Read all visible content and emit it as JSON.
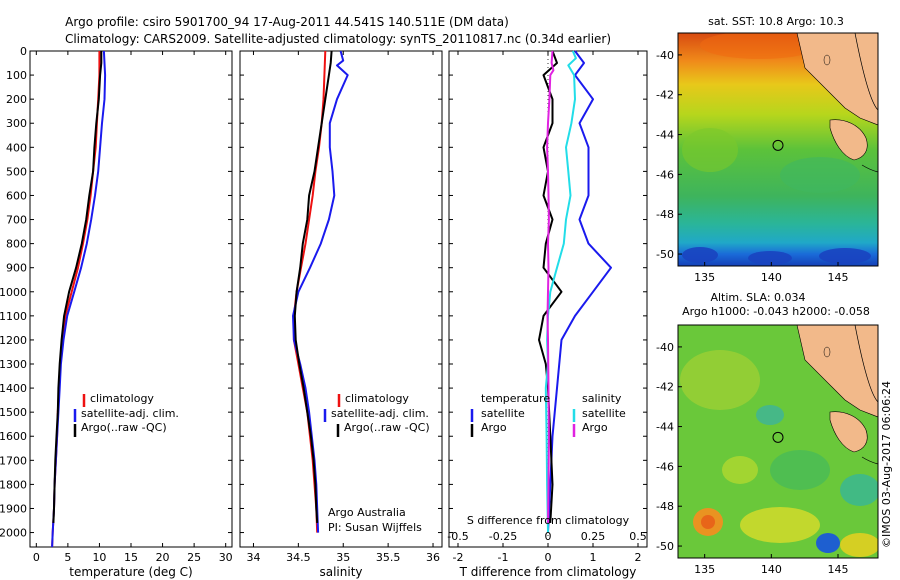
{
  "header": {
    "line1": "Argo profile: csiro 5901700_94 17-Aug-2011 44.541S 140.511E (DM data)",
    "line2": "Climatology: CARS2009. Satellite-adjusted climatology: synTS_20110817.nc (0.34d earlier)"
  },
  "side_label": "©IMOS 03-Aug-2017 06:06:24",
  "colors": {
    "climatology": "#ee1111",
    "satellite": "#1a1aee",
    "argo": "#000000",
    "sat_sal": "#22dde8",
    "argo_sal": "#e022e0"
  },
  "chart_data": [
    {
      "type": "line",
      "id": "temperature",
      "xlabel": "temperature (deg C)",
      "xlim": [
        -1,
        31
      ],
      "xticks": [
        0,
        5,
        10,
        15,
        20,
        25,
        30
      ],
      "ylim": [
        2060,
        0
      ],
      "yticks": [
        0,
        100,
        200,
        300,
        400,
        500,
        600,
        700,
        800,
        900,
        1000,
        1100,
        1200,
        1300,
        1400,
        1500,
        1600,
        1700,
        1800,
        1900,
        2000
      ],
      "legend": [
        "climatology",
        "satellite-adj. clim.",
        "Argo(..raw -QC)"
      ],
      "series": [
        {
          "name": "climatology",
          "color": "#ee1111",
          "points": [
            [
              10.0,
              0
            ],
            [
              10.0,
              100
            ],
            [
              9.8,
              200
            ],
            [
              9.6,
              300
            ],
            [
              9.4,
              400
            ],
            [
              9.0,
              500
            ],
            [
              8.6,
              600
            ],
            [
              8.1,
              700
            ],
            [
              7.4,
              800
            ],
            [
              6.6,
              900
            ],
            [
              5.6,
              1000
            ],
            [
              4.6,
              1100
            ],
            [
              4.1,
              1200
            ],
            [
              3.8,
              1300
            ],
            [
              3.6,
              1400
            ],
            [
              3.4,
              1500
            ],
            [
              3.3,
              1600
            ],
            [
              3.1,
              1700
            ],
            [
              2.9,
              1800
            ],
            [
              2.8,
              1900
            ],
            [
              2.6,
              2000
            ],
            [
              2.5,
              2060
            ]
          ]
        },
        {
          "name": "satellite-adj. clim.",
          "color": "#1a1aee",
          "points": [
            [
              10.7,
              0
            ],
            [
              10.9,
              100
            ],
            [
              10.8,
              200
            ],
            [
              10.4,
              300
            ],
            [
              10.1,
              400
            ],
            [
              9.8,
              500
            ],
            [
              9.3,
              600
            ],
            [
              8.7,
              700
            ],
            [
              8.0,
              800
            ],
            [
              7.1,
              900
            ],
            [
              6.0,
              1000
            ],
            [
              4.9,
              1100
            ],
            [
              4.3,
              1200
            ],
            [
              3.9,
              1300
            ],
            [
              3.7,
              1400
            ],
            [
              3.5,
              1500
            ],
            [
              3.3,
              1600
            ],
            [
              3.1,
              1700
            ],
            [
              2.9,
              1800
            ],
            [
              2.8,
              1900
            ],
            [
              2.6,
              2000
            ],
            [
              2.5,
              2060
            ]
          ]
        },
        {
          "name": "Argo(..raw -QC)",
          "color": "#000000",
          "points": [
            [
              10.3,
              0
            ],
            [
              10.3,
              50
            ],
            [
              10.1,
              100
            ],
            [
              9.9,
              200
            ],
            [
              9.5,
              300
            ],
            [
              9.2,
              400
            ],
            [
              9.0,
              500
            ],
            [
              8.4,
              600
            ],
            [
              7.9,
              700
            ],
            [
              7.2,
              800
            ],
            [
              6.3,
              900
            ],
            [
              5.2,
              1000
            ],
            [
              4.4,
              1100
            ],
            [
              4.0,
              1200
            ],
            [
              3.7,
              1300
            ],
            [
              3.5,
              1400
            ],
            [
              3.4,
              1500
            ],
            [
              3.2,
              1600
            ],
            [
              3.0,
              1700
            ],
            [
              2.9,
              1800
            ],
            [
              2.8,
              1900
            ],
            [
              2.7,
              1960
            ]
          ]
        }
      ]
    },
    {
      "type": "line",
      "id": "salinity",
      "xlabel": "salinity",
      "xlim": [
        33.85,
        36.1
      ],
      "xticks": [
        34,
        34.5,
        35,
        35.5,
        36
      ],
      "ylim": [
        2060,
        0
      ],
      "legend": [
        "climatology",
        "satellite-adj. clim.",
        "Argo(..raw -QC)"
      ],
      "annotation": [
        "Argo Australia",
        "PI: Susan Wijffels"
      ],
      "series": [
        {
          "name": "climatology",
          "color": "#ee1111",
          "points": [
            [
              34.8,
              0
            ],
            [
              34.79,
              100
            ],
            [
              34.78,
              200
            ],
            [
              34.76,
              300
            ],
            [
              34.73,
              400
            ],
            [
              34.69,
              500
            ],
            [
              34.66,
              600
            ],
            [
              34.62,
              700
            ],
            [
              34.58,
              800
            ],
            [
              34.53,
              900
            ],
            [
              34.48,
              1000
            ],
            [
              34.45,
              1100
            ],
            [
              34.45,
              1200
            ],
            [
              34.5,
              1300
            ],
            [
              34.55,
              1400
            ],
            [
              34.6,
              1500
            ],
            [
              34.63,
              1600
            ],
            [
              34.66,
              1700
            ],
            [
              34.68,
              1800
            ],
            [
              34.7,
              1900
            ],
            [
              34.71,
              2000
            ]
          ]
        },
        {
          "name": "satellite-adj. clim.",
          "color": "#1a1aee",
          "points": [
            [
              34.97,
              0
            ],
            [
              35.0,
              40
            ],
            [
              34.93,
              60
            ],
            [
              35.05,
              100
            ],
            [
              34.93,
              200
            ],
            [
              34.85,
              300
            ],
            [
              34.85,
              400
            ],
            [
              34.88,
              500
            ],
            [
              34.9,
              600
            ],
            [
              34.84,
              700
            ],
            [
              34.75,
              800
            ],
            [
              34.63,
              900
            ],
            [
              34.5,
              1000
            ],
            [
              34.44,
              1100
            ],
            [
              34.45,
              1200
            ],
            [
              34.52,
              1300
            ],
            [
              34.58,
              1400
            ],
            [
              34.62,
              1500
            ],
            [
              34.65,
              1600
            ],
            [
              34.68,
              1700
            ],
            [
              34.7,
              1800
            ],
            [
              34.71,
              1900
            ],
            [
              34.72,
              2000
            ]
          ]
        },
        {
          "name": "Argo(..raw -QC)",
          "color": "#000000",
          "points": [
            [
              34.87,
              0
            ],
            [
              34.86,
              50
            ],
            [
              34.84,
              100
            ],
            [
              34.8,
              200
            ],
            [
              34.76,
              300
            ],
            [
              34.72,
              400
            ],
            [
              34.68,
              500
            ],
            [
              34.62,
              600
            ],
            [
              34.6,
              700
            ],
            [
              34.55,
              800
            ],
            [
              34.52,
              900
            ],
            [
              34.48,
              1000
            ],
            [
              34.46,
              1100
            ],
            [
              34.47,
              1200
            ],
            [
              34.51,
              1300
            ],
            [
              34.56,
              1400
            ],
            [
              34.6,
              1500
            ],
            [
              34.64,
              1600
            ],
            [
              34.67,
              1700
            ],
            [
              34.69,
              1800
            ],
            [
              34.7,
              1900
            ],
            [
              34.71,
              1960
            ]
          ]
        }
      ]
    },
    {
      "type": "line",
      "id": "difference",
      "xlabel": "T difference from climatology",
      "xlabel_top": "S difference from climatology",
      "xlim": [
        -2.2,
        2.2
      ],
      "xticks": [
        -2,
        -1,
        0,
        1,
        2
      ],
      "xticks_top": [
        -0.5,
        -0.25,
        0,
        0.25,
        0.5
      ],
      "top_tick_labels": [
        "-0.5",
        "-0.25",
        "0",
        "0.25",
        "0.5"
      ],
      "ylim": [
        2060,
        0
      ],
      "legend": {
        "temperature": [
          "temperature",
          "satellite",
          "Argo"
        ],
        "salinity": [
          "salinity",
          "satellite",
          "Argo"
        ]
      },
      "series": [
        {
          "name": "temperature satellite",
          "color": "#1a1aee",
          "points": [
            [
              0.6,
              0
            ],
            [
              0.8,
              50
            ],
            [
              0.6,
              100
            ],
            [
              1.0,
              200
            ],
            [
              0.7,
              300
            ],
            [
              0.9,
              400
            ],
            [
              0.9,
              500
            ],
            [
              0.9,
              600
            ],
            [
              0.7,
              700
            ],
            [
              0.9,
              800
            ],
            [
              1.4,
              900
            ],
            [
              1.0,
              1000
            ],
            [
              0.6,
              1100
            ],
            [
              0.3,
              1200
            ],
            [
              0.2,
              1400
            ],
            [
              0.1,
              1600
            ],
            [
              0.05,
              1800
            ],
            [
              0,
              2000
            ]
          ]
        },
        {
          "name": "temperature Argo",
          "color": "#000000",
          "points": [
            [
              0.1,
              0
            ],
            [
              0.2,
              50
            ],
            [
              -0.1,
              100
            ],
            [
              0.1,
              200
            ],
            [
              0.1,
              300
            ],
            [
              -0.1,
              400
            ],
            [
              0,
              500
            ],
            [
              -0.1,
              600
            ],
            [
              0.1,
              700
            ],
            [
              -0.05,
              800
            ],
            [
              -0.1,
              900
            ],
            [
              0.3,
              1000
            ],
            [
              0.1,
              1050
            ],
            [
              -0.1,
              1100
            ],
            [
              -0.2,
              1200
            ],
            [
              -0.05,
              1300
            ],
            [
              0,
              1400
            ],
            [
              0.05,
              1600
            ],
            [
              0.1,
              1800
            ],
            [
              0.05,
              1960
            ]
          ]
        },
        {
          "name": "salinity satellite",
          "color": "#22dde8",
          "points": [
            [
              0.55,
              0
            ],
            [
              0.62,
              30
            ],
            [
              0.45,
              60
            ],
            [
              0.58,
              100
            ],
            [
              0.6,
              200
            ],
            [
              0.52,
              300
            ],
            [
              0.4,
              400
            ],
            [
              0.45,
              500
            ],
            [
              0.5,
              600
            ],
            [
              0.4,
              700
            ],
            [
              0.35,
              800
            ],
            [
              0.2,
              900
            ],
            [
              0.05,
              1000
            ],
            [
              0,
              1100
            ],
            [
              -0.02,
              1200
            ],
            [
              0,
              1300
            ],
            [
              -0.05,
              1400
            ],
            [
              -0.03,
              1600
            ],
            [
              -0.02,
              1800
            ],
            [
              0,
              2000
            ]
          ]
        },
        {
          "name": "salinity Argo",
          "color": "#e022e0",
          "points": [
            [
              0.1,
              0
            ],
            [
              0.08,
              50
            ],
            [
              0.12,
              80
            ],
            [
              0.05,
              100
            ],
            [
              0.03,
              200
            ],
            [
              0,
              300
            ],
            [
              -0.02,
              400
            ],
            [
              0,
              500
            ],
            [
              0.01,
              600
            ],
            [
              0.02,
              700
            ],
            [
              0,
              800
            ],
            [
              0.01,
              900
            ],
            [
              0,
              1000
            ],
            [
              -0.01,
              1100
            ],
            [
              0,
              1200
            ],
            [
              0.01,
              1400
            ],
            [
              0.02,
              1600
            ],
            [
              0.01,
              1800
            ],
            [
              0,
              1960
            ]
          ]
        }
      ]
    },
    {
      "type": "heatmap",
      "id": "sst-map",
      "title": "sat. SST: 10.8  Argo: 10.3",
      "xticks": [
        135,
        140,
        145
      ],
      "yticks": [
        -40,
        -42,
        -44,
        -46,
        -48,
        -50
      ],
      "xlim": [
        133,
        148
      ],
      "ylim": [
        -50.6,
        -38.9
      ],
      "marker": [
        140.5,
        -44.54
      ]
    },
    {
      "type": "heatmap",
      "id": "sla-map",
      "title_lines": [
        "Altim. SLA: 0.034",
        "Argo h1000: -0.043 h2000: -0.058"
      ],
      "xticks": [
        135,
        140,
        145
      ],
      "yticks": [
        -40,
        -42,
        -44,
        -46,
        -48,
        -50
      ],
      "xlim": [
        133,
        148
      ],
      "ylim": [
        -50.6,
        -38.9
      ],
      "marker": [
        140.5,
        -44.54
      ]
    }
  ]
}
